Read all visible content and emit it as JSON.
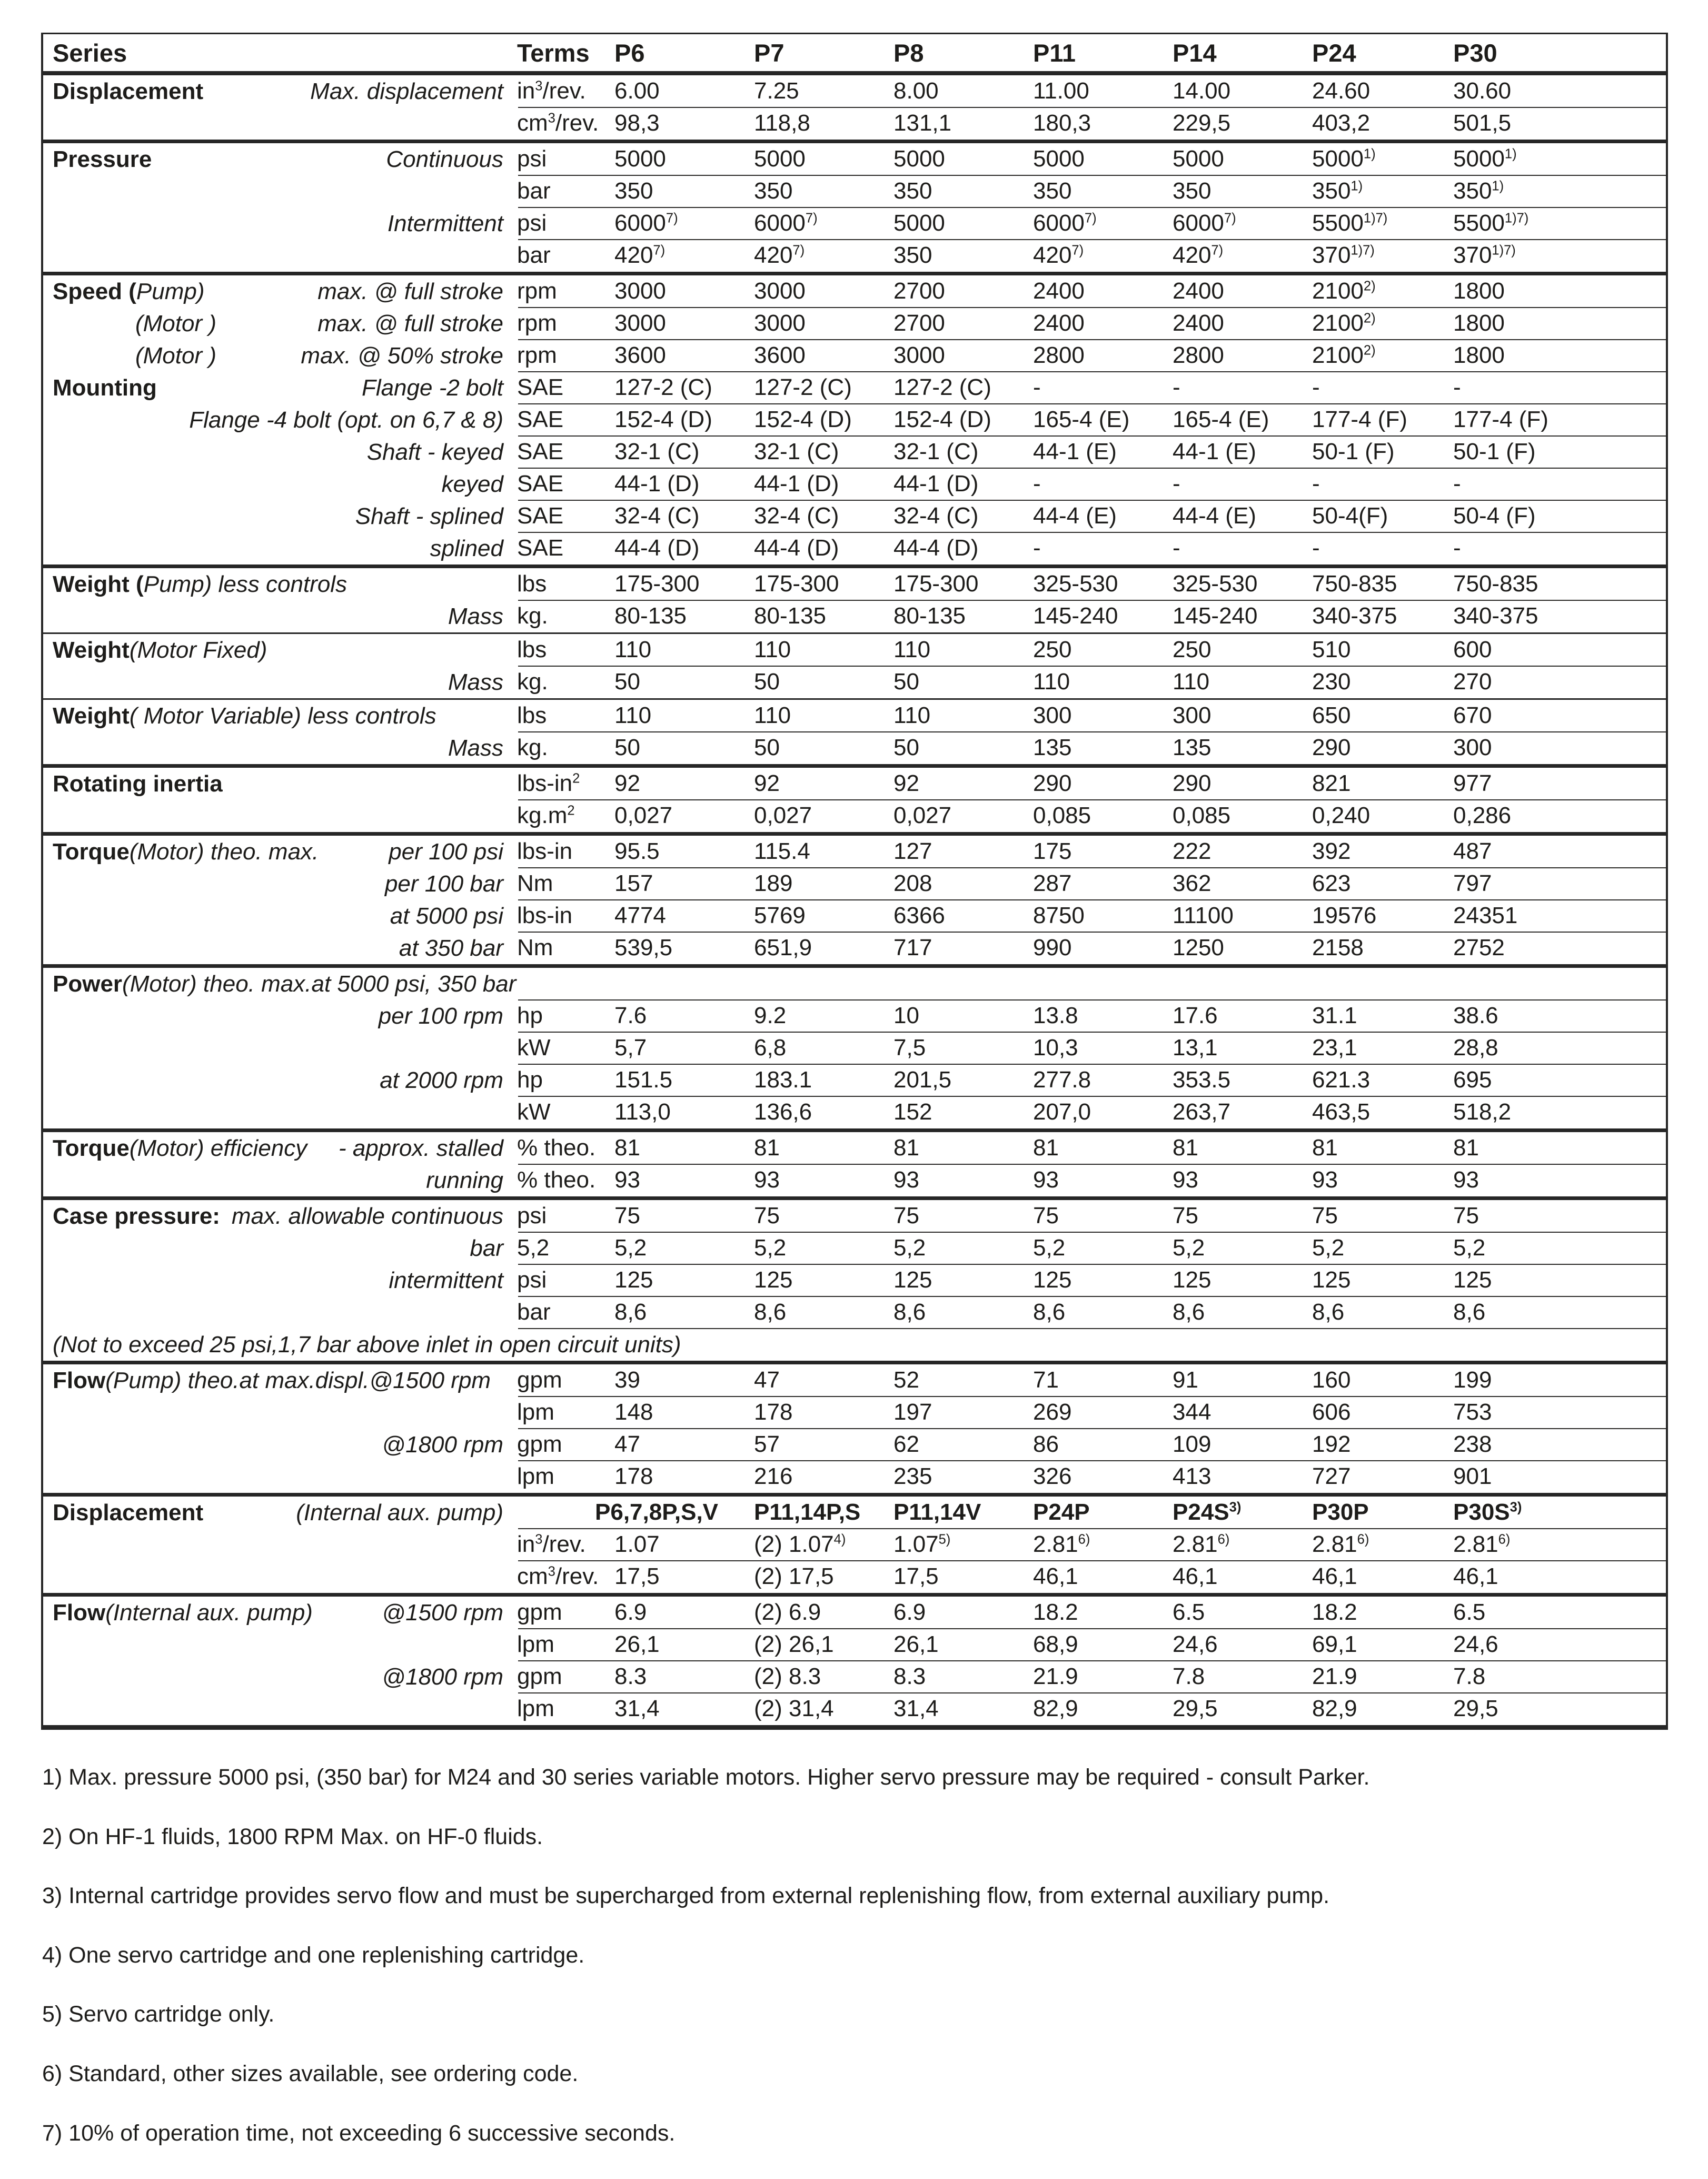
{
  "table": {
    "header": {
      "series_label": "Series",
      "terms_label": "Terms",
      "columns": [
        "P6",
        "P7",
        "P8",
        "P11",
        "P14",
        "P24",
        "P30"
      ]
    },
    "sections": [
      {
        "sep": "none",
        "rows": [
          {
            "head": "Displacement",
            "sub": "Max. displacement",
            "terms": "in^3^/rev.",
            "values": [
              "6.00",
              "7.25",
              "8.00",
              "11.00",
              "14.00",
              "24.60",
              "30.60"
            ]
          },
          {
            "terms": "cm^3^/rev.",
            "values": [
              "98,3",
              "118,8",
              "131,1",
              "180,3",
              "229,5",
              "403,2",
              "501,5"
            ]
          }
        ]
      },
      {
        "sep": "thick",
        "rows": [
          {
            "head": "Pressure",
            "sub": "Continuous",
            "terms": "psi",
            "values": [
              "5000",
              "5000",
              "5000",
              "5000",
              "5000",
              "5000^1)^",
              "5000^1)^"
            ]
          },
          {
            "terms": "bar",
            "values": [
              "350",
              "350",
              "350",
              "350",
              "350",
              "350^1)^",
              "350^1)^"
            ]
          },
          {
            "sub": "Intermittent",
            "terms": "psi",
            "values": [
              "6000^7)^",
              "6000^7)^",
              "5000",
              "6000^7)^",
              "6000^7)^",
              "5500^1)7)^",
              "5500^1)7)^"
            ]
          },
          {
            "terms": "bar",
            "values": [
              "420^7)^",
              "420^7)^",
              "350",
              "420^7)^",
              "420^7)^",
              "370^1)7)^",
              "370^1)7)^"
            ]
          }
        ]
      },
      {
        "sep": "thick",
        "rows": [
          {
            "head": "Speed (",
            "head_it": "Pump)",
            "sub": "max. @ full stroke",
            "terms": "rpm",
            "values": [
              "3000",
              "3000",
              "2700",
              "2400",
              "2400",
              "2100^2)^",
              "1800"
            ]
          },
          {
            "head_it": "(Motor )",
            "indent": true,
            "sub": "max. @ full stroke",
            "terms": "rpm",
            "values": [
              "3000",
              "3000",
              "2700",
              "2400",
              "2400",
              "2100^2)^",
              "1800"
            ]
          },
          {
            "head_it": "(Motor )",
            "indent": true,
            "sub": "max. @ 50% stroke",
            "terms": "rpm",
            "values": [
              "3600",
              "3600",
              "3000",
              "2800",
              "2800",
              "2100^2)^",
              "1800"
            ]
          },
          {
            "head": "Mounting",
            "sub": "Flange -2 bolt",
            "terms": "SAE",
            "values": [
              "127-2 (C)",
              "127-2 (C)",
              "127-2 (C)",
              "-",
              "-",
              "-",
              "-"
            ]
          },
          {
            "sub": "Flange -4 bolt (opt. on 6,7 & 8)",
            "terms": "SAE",
            "values": [
              "152-4 (D)",
              "152-4 (D)",
              "152-4 (D)",
              "165-4 (E)",
              "165-4 (E)",
              "177-4 (F)",
              "177-4 (F)"
            ]
          },
          {
            "sub": "Shaft - keyed",
            "terms": "SAE",
            "values": [
              "32-1 (C)",
              "32-1 (C)",
              "32-1 (C)",
              "44-1 (E)",
              "44-1 (E)",
              "50-1 (F)",
              "50-1 (F)"
            ]
          },
          {
            "sub": "keyed",
            "terms": "SAE",
            "values": [
              "44-1 (D)",
              "44-1 (D)",
              "44-1 (D)",
              "-",
              "-",
              "-",
              "-"
            ]
          },
          {
            "sub": "Shaft - splined",
            "terms": "SAE",
            "values": [
              "32-4 (C)",
              "32-4 (C)",
              "32-4 (C)",
              "44-4 (E)",
              "44-4 (E)",
              "50-4(F)",
              "50-4 (F)"
            ]
          },
          {
            "sub": "splined",
            "terms": "SAE",
            "values": [
              "44-4 (D)",
              "44-4 (D)",
              "44-4 (D)",
              "-",
              "-",
              "-",
              "-"
            ]
          }
        ]
      },
      {
        "sep": "thick",
        "rows": [
          {
            "head": "Weight (",
            "head_it": "Pump) less controls",
            "terms": "lbs",
            "values": [
              "175-300",
              "175-300",
              "175-300",
              "325-530",
              "325-530",
              "750-835",
              "750-835"
            ]
          },
          {
            "sub": "Mass",
            "terms": "kg.",
            "values": [
              "80-135",
              "80-135",
              "80-135",
              "145-240",
              "145-240",
              "340-375",
              "340-375"
            ]
          }
        ]
      },
      {
        "sep": "med",
        "rows": [
          {
            "head": "Weight",
            "head_it": " (Motor Fixed)",
            "terms": "lbs",
            "values": [
              "110",
              "110",
              "110",
              "250",
              "250",
              "510",
              "600"
            ]
          },
          {
            "sub": "Mass",
            "terms": "kg.",
            "values": [
              "50",
              "50",
              "50",
              "110",
              "110",
              "230",
              "270"
            ]
          }
        ]
      },
      {
        "sep": "med",
        "rows": [
          {
            "head": "Weight",
            "head_it": " ( Motor Variable) less controls",
            "terms": "lbs",
            "values": [
              "110",
              "110",
              "110",
              "300",
              "300",
              "650",
              "670"
            ]
          },
          {
            "sub": "Mass",
            "terms": "kg.",
            "values": [
              "50",
              "50",
              "50",
              "135",
              "135",
              "290",
              "300"
            ]
          }
        ]
      },
      {
        "sep": "thick",
        "rows": [
          {
            "head": "Rotating inertia",
            "terms": "lbs-in^2^",
            "values": [
              "92",
              "92",
              "92",
              "290",
              "290",
              "821",
              "977"
            ]
          },
          {
            "terms": "kg.m^2^",
            "values": [
              "0,027",
              "0,027",
              "0,027",
              "0,085",
              "0,085",
              "0,240",
              "0,286"
            ]
          }
        ]
      },
      {
        "sep": "thick",
        "rows": [
          {
            "head": "Torque",
            "head_it": " (Motor) theo. max.",
            "sub": "per 100 psi",
            "terms": "lbs-in",
            "values": [
              "95.5",
              "115.4",
              "127",
              "175",
              "222",
              "392",
              "487"
            ]
          },
          {
            "sub": "per 100 bar",
            "terms": "Nm",
            "values": [
              "157",
              "189",
              "208",
              "287",
              "362",
              "623",
              "797"
            ]
          },
          {
            "sub": "at 5000 psi",
            "terms": "lbs-in",
            "values": [
              "4774",
              "5769",
              "6366",
              "8750",
              "11100",
              "19576",
              "24351"
            ]
          },
          {
            "sub": "at 350 bar",
            "terms": "Nm",
            "values": [
              "539,5",
              "651,9",
              "717",
              "990",
              "1250",
              "2158",
              "2752"
            ]
          }
        ]
      },
      {
        "sep": "thick",
        "rows": [
          {
            "head": "Power",
            "head_it": " (Motor) theo. max.at 5000 psi, 350 bar",
            "wide": true,
            "terms": "",
            "values": [
              "",
              "",
              "",
              "",
              "",
              "",
              ""
            ]
          },
          {
            "sub": "per 100 rpm",
            "terms": "hp",
            "values": [
              "7.6",
              "9.2",
              "10",
              "13.8",
              "17.6",
              "31.1",
              "38.6"
            ]
          },
          {
            "terms": "kW",
            "values": [
              "5,7",
              "6,8",
              "7,5",
              "10,3",
              "13,1",
              "23,1",
              "28,8"
            ]
          },
          {
            "sub": "at 2000 rpm",
            "terms": "hp",
            "values": [
              "151.5",
              "183.1",
              "201,5",
              "277.8",
              "353.5",
              "621.3",
              "695"
            ]
          },
          {
            "terms": "kW",
            "values": [
              "113,0",
              "136,6",
              "152",
              "207,0",
              "263,7",
              "463,5",
              "518,2"
            ]
          }
        ]
      },
      {
        "sep": "thick",
        "rows": [
          {
            "head": "Torque",
            "head_it": " (Motor) efficiency",
            "sub": "- approx. stalled",
            "terms": "% theo.",
            "values": [
              "81",
              "81",
              "81",
              "81",
              "81",
              "81",
              "81"
            ]
          },
          {
            "sub": "running",
            "terms": "% theo.",
            "values": [
              "93",
              "93",
              "93",
              "93",
              "93",
              "93",
              "93"
            ]
          }
        ]
      },
      {
        "sep": "thick",
        "rows": [
          {
            "head": "Case pressure:",
            "sub": "max. allowable continuous",
            "terms": "psi",
            "values": [
              "75",
              "75",
              "75",
              "75",
              "75",
              "75",
              "75"
            ]
          },
          {
            "sub": "bar",
            "terms": "5,2",
            "values": [
              "5,2",
              "5,2",
              "5,2",
              "5,2",
              "5,2",
              "5,2",
              "5,2"
            ]
          },
          {
            "sub": "intermittent",
            "terms": "psi",
            "values": [
              "125",
              "125",
              "125",
              "125",
              "125",
              "125",
              "125"
            ]
          },
          {
            "terms": "bar",
            "values": [
              "8,6",
              "8,6",
              "8,6",
              "8,6",
              "8,6",
              "8,6",
              "8,6"
            ]
          },
          {
            "note": "(Not to exceed 25 psi,1,7 bar above inlet in open circuit units)"
          }
        ]
      },
      {
        "sep": "thick",
        "rows": [
          {
            "head": "Flow",
            "head_it": " (Pump) theo.at max.displ.@1500 rpm",
            "terms": "gpm",
            "values": [
              "39",
              "47",
              "52",
              "71",
              "91",
              "160",
              "199"
            ]
          },
          {
            "terms": "lpm",
            "values": [
              "148",
              "178",
              "197",
              "269",
              "344",
              "606",
              "753"
            ]
          },
          {
            "sub": "@1800 rpm",
            "terms": "gpm",
            "values": [
              "47",
              "57",
              "62",
              "86",
              "109",
              "192",
              "238"
            ]
          },
          {
            "terms": "lpm",
            "values": [
              "178",
              "216",
              "235",
              "326",
              "413",
              "727",
              "901"
            ]
          }
        ]
      },
      {
        "sep": "thick",
        "rows": [
          {
            "head": "Displacement",
            "sub": "(Internal aux. pump)",
            "colheads": [
              "P6,7,8P,S,V",
              "P11,14P,S",
              "P11,14V",
              "P24P",
              "P24S^3)^",
              "P30P",
              "P30S^3)^"
            ]
          },
          {
            "terms": "in^3^/rev.",
            "values": [
              "1.07",
              "(2) 1.07^4)^",
              "1.07^5)^",
              "2.81^6)^",
              "2.81^6)^",
              "2.81^6)^",
              "2.81^6)^"
            ]
          },
          {
            "terms": "cm^3^/rev.",
            "values": [
              "17,5",
              "(2) 17,5",
              "17,5",
              "46,1",
              "46,1",
              "46,1",
              "46,1"
            ]
          }
        ]
      },
      {
        "sep": "thick",
        "rows": [
          {
            "head": "Flow",
            "head_it": " (Internal aux. pump)",
            "sub": "@1500 rpm",
            "terms": "gpm",
            "values": [
              "6.9",
              "(2) 6.9",
              "6.9",
              "18.2",
              "6.5",
              "18.2",
              "6.5"
            ]
          },
          {
            "terms": "lpm",
            "values": [
              "26,1",
              "(2) 26,1",
              "26,1",
              "68,9",
              "24,6",
              "69,1",
              "24,6"
            ]
          },
          {
            "sub": "@1800 rpm",
            "terms": "gpm",
            "values": [
              "8.3",
              "(2) 8.3",
              "8.3",
              "21.9",
              "7.8",
              "21.9",
              "7.8"
            ]
          },
          {
            "terms": "lpm",
            "values": [
              "31,4",
              "(2) 31,4",
              "31,4",
              "82,9",
              "29,5",
              "82,9",
              "29,5"
            ]
          }
        ]
      }
    ]
  },
  "footnotes": [
    "1) Max. pressure 5000 psi, (350 bar) for M24 and 30 series variable motors. Higher servo pressure may be required - consult Parker.",
    "2) On HF-1 fluids, 1800 RPM Max. on HF-0 fluids.",
    "3) Internal cartridge provides servo flow and must be supercharged from external replenishing flow, from external auxiliary pump.",
    "4) One servo cartridge and one replenishing cartridge.",
    "5) Servo cartridge only.",
    "6) Standard, other sizes available, see ordering code.",
    "7) 10% of operation time, not exceeding 6 successive seconds."
  ]
}
